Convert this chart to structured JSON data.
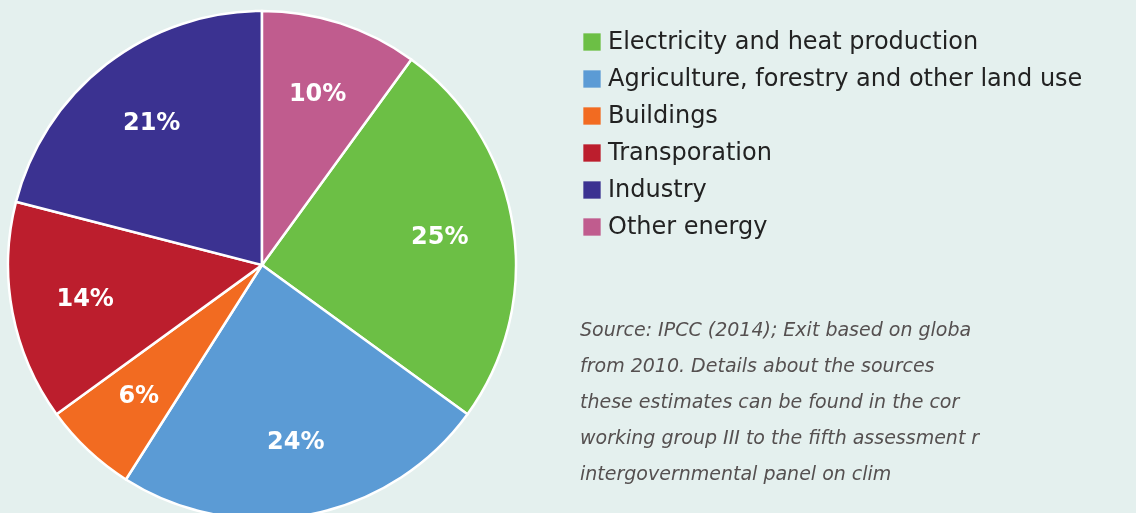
{
  "chart_data": {
    "type": "pie",
    "categories": [
      "Electricity and heat production",
      "Agriculture, forestry and other land use",
      "Buildings",
      "Transporation",
      "Industry",
      "Other energy"
    ],
    "values": [
      25,
      24,
      6,
      14,
      21,
      10
    ],
    "colors": [
      "#6cbf45",
      "#5b9bd5",
      "#f26b21",
      "#bc1e2d",
      "#3b3291",
      "#c05c8e"
    ],
    "value_labels": [
      "25%",
      "24%",
      "6%",
      "14%",
      "21%",
      "10%"
    ],
    "legend": "right",
    "annotations": [
      "Source: IPCC (2014); Exit based on globa",
      "from 2010. Details about the sources",
      "these estimates can be found in the cor",
      "working group III to the fifth assessment r",
      "intergovernmental panel on clim"
    ]
  }
}
